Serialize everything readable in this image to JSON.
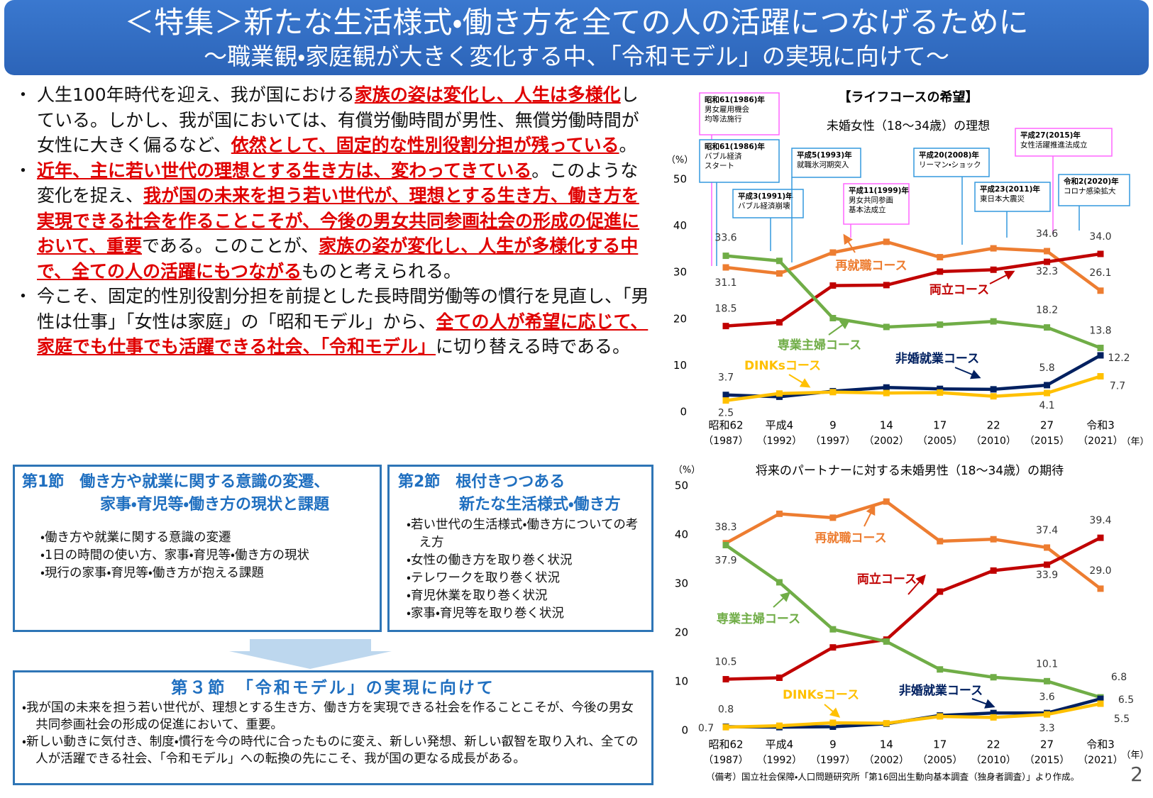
{
  "header": {
    "title": "＜特集＞新たな生活様式・働き方を全ての人の活躍につなげるために",
    "subtitle": "～職業観・家庭観が大きく変化する中、「令和モデル」の実現に向けて～"
  },
  "bullets": [
    {
      "marker": "・",
      "runs": [
        {
          "text": "人生100年時代を迎え、我が国における",
          "emphasis": false
        },
        {
          "text": "家族の姿は変化し、人生は多様化",
          "emphasis": true
        },
        {
          "text": "している。しかし、我が国においては、有償労働時間が男性、無償労働時間が女性に大きく偏るなど、",
          "emphasis": false
        },
        {
          "text": "依然として、固定的な性別役割分担が残っている",
          "emphasis": true
        },
        {
          "text": "。",
          "emphasis": false
        }
      ]
    },
    {
      "marker": "・",
      "runs": [
        {
          "text": "近年、主に若い世代の理想とする生き方は、変わってきている",
          "emphasis": true
        },
        {
          "text": "。このような変化を捉え、",
          "emphasis": false
        },
        {
          "text": "我が国の未来を担う若い世代が、理想とする生き方、働き方を実現できる社会を作ることこそが、今後の男女共同参画社会の形成の促進において、重要",
          "emphasis": true
        },
        {
          "text": "である。このことが、",
          "emphasis": false
        },
        {
          "text": "家族の姿が変化し、人生が多様化する中で、全ての人の活躍にもつながる",
          "emphasis": true
        },
        {
          "text": "ものと考えられる。",
          "emphasis": false
        }
      ]
    },
    {
      "marker": "・",
      "runs": [
        {
          "text": "今こそ、固定的性別役割分担を前提とした長時間労働等の慣行を見直し、「男性は仕事」「女性は家庭」の「昭和モデル」から、",
          "emphasis": false
        },
        {
          "text": "全ての人が希望に応じて、家庭でも仕事でも活躍できる社会、「令和モデル」",
          "emphasis": true
        },
        {
          "text": "に切り替える時である。",
          "emphasis": false
        }
      ]
    }
  ],
  "sections": [
    {
      "title": [
        "第1節　働き方や就業に関する意識の変遷、",
        "家事・育児等・働き方の現状と課題"
      ],
      "items": [
        "・働き方や就業に関する意識の変遷",
        "・1日の時間の使い方、家事・育児等・働き方の現状",
        "・現行の家事・育児等・働き方が抱える課題"
      ]
    },
    {
      "title": [
        "第2節　根付きつつある",
        "新たな生活様式・働き方"
      ],
      "items": [
        "・若い世代の生活様式・働き方についての考え方",
        "・女性の働き方を取り巻く状況",
        "・テレワークを取り巻く状況",
        "・育児休業を取り巻く状況",
        "・家事・育児等を取り巻く状況"
      ]
    },
    {
      "title": [
        "第３節　「令和モデル」の実現に向けて"
      ],
      "items": [
        "・我が国の未来を担う若い世代が、理想とする生き方、働き方を実現できる社会を作ることこそが、今後の男女共同参画社会の形成の促進において、重要。",
        "・新しい動きに気付き、制度・慣行を今の時代に合ったものに変え、新しい発想、新しい叡智を取り入れ、全ての人が活躍できる社会、「令和モデル」への転換の先にこそ、我が国の更なる成長がある。"
      ]
    }
  ],
  "chart_data": [
    {
      "type": "line",
      "heading": "【ライフコースの希望】",
      "title": "未婚女性（18～34歳）の理想",
      "y_unit": "（%）",
      "x_unit": "（年）",
      "categories": [
        "昭和62",
        "平成4",
        "9",
        "14",
        "17",
        "22",
        "27",
        "令和3"
      ],
      "category_years": [
        "（1987）",
        "（1992）",
        "（1997）",
        "（2002）",
        "（2005）",
        "（2010）",
        "（2015）",
        "（2021）"
      ],
      "ylim": [
        0,
        50
      ],
      "yticks": [
        0,
        10,
        20,
        30,
        40,
        50
      ],
      "grid": false,
      "series": [
        {
          "name": "再就職コース",
          "color": "#ed7d31",
          "values": [
            31.1,
            29.8,
            34.3,
            36.6,
            33.3,
            35.2,
            34.6,
            26.1
          ],
          "value_labels": [
            "31.1",
            null,
            null,
            null,
            null,
            null,
            "34.6",
            "26.1"
          ]
        },
        {
          "name": "両立コース",
          "color": "#c00000",
          "values": [
            18.5,
            19.3,
            27.2,
            27.3,
            30.2,
            30.6,
            32.3,
            34.0
          ],
          "value_labels": [
            "18.5",
            null,
            null,
            null,
            null,
            null,
            "32.3",
            "34.0"
          ]
        },
        {
          "name": "専業主婦コース",
          "color": "#70ad47",
          "values": [
            33.6,
            32.5,
            20.2,
            18.3,
            18.8,
            19.5,
            18.2,
            13.8
          ],
          "value_labels": [
            "33.6",
            null,
            null,
            null,
            null,
            null,
            "18.2",
            "13.8"
          ]
        },
        {
          "name": "非婚就業コース",
          "color": "#002060",
          "values": [
            3.7,
            3.3,
            4.5,
            5.3,
            5.0,
            4.9,
            5.8,
            12.2
          ],
          "value_labels": [
            "3.7",
            null,
            null,
            null,
            null,
            null,
            "5.8",
            "12.2"
          ]
        },
        {
          "name": "DINKsコース",
          "color": "#ffc000",
          "values": [
            2.5,
            4.0,
            4.3,
            4.1,
            4.2,
            3.4,
            4.1,
            7.7
          ],
          "value_labels": [
            "2.5",
            null,
            null,
            null,
            null,
            null,
            "4.1",
            "7.7"
          ]
        }
      ],
      "annotations": [
        {
          "lines": [
            "昭和61(1986)年",
            "男女雇用機会",
            "均等法施行"
          ],
          "color": "#ff66ff"
        },
        {
          "lines": [
            "昭和61(1986)年",
            "バブル経済",
            "スタート"
          ],
          "color": "#3399dd"
        },
        {
          "lines": [
            "平成3(1991)年",
            "バブル経済崩壊"
          ],
          "color": "#3399dd"
        },
        {
          "lines": [
            "平成5(1993)年",
            "就職氷河期突入"
          ],
          "color": "#3399dd"
        },
        {
          "lines": [
            "平成11(1999)年",
            "男女共同参画",
            "基本法成立"
          ],
          "color": "#ff66ff"
        },
        {
          "lines": [
            "平成20(2008)年",
            "リーマン・ショック"
          ],
          "color": "#3399dd"
        },
        {
          "lines": [
            "平成23(2011)年",
            "東日本大震災"
          ],
          "color": "#3399dd"
        },
        {
          "lines": [
            "平成27(2015)年",
            "女性活躍推進法成立"
          ],
          "color": "#ff66ff"
        },
        {
          "lines": [
            "令和2(2020)年",
            "コロナ感染拡大"
          ],
          "color": "#3399dd"
        }
      ]
    },
    {
      "type": "line",
      "title": "将来のパートナーに対する未婚男性（18～34歳）の期待",
      "y_unit": "（%）",
      "x_unit": "（年）",
      "categories": [
        "昭和62",
        "平成4",
        "9",
        "14",
        "17",
        "22",
        "27",
        "令和3"
      ],
      "category_years": [
        "（1987）",
        "（1992）",
        "（1997）",
        "（2002）",
        "（2005）",
        "（2010）",
        "（2015）",
        "（2021）"
      ],
      "ylim": [
        0,
        50
      ],
      "yticks": [
        0,
        10,
        20,
        30,
        40,
        50
      ],
      "grid": false,
      "series": [
        {
          "name": "再就職コース",
          "color": "#ed7d31",
          "values": [
            38.3,
            44.3,
            43.5,
            46.8,
            38.7,
            39.1,
            37.4,
            29.0
          ],
          "value_labels": [
            "38.3",
            null,
            null,
            null,
            null,
            null,
            "37.4",
            "29.0"
          ]
        },
        {
          "name": "両立コース",
          "color": "#c00000",
          "values": [
            10.5,
            10.8,
            17.0,
            18.6,
            28.4,
            32.7,
            33.9,
            39.4
          ],
          "value_labels": [
            "10.5",
            null,
            null,
            null,
            null,
            null,
            "33.9",
            "39.4"
          ]
        },
        {
          "name": "専業主婦コース",
          "color": "#70ad47",
          "values": [
            37.9,
            30.3,
            20.7,
            18.2,
            12.5,
            10.9,
            10.1,
            6.8
          ],
          "value_labels": [
            "37.9",
            null,
            null,
            null,
            null,
            null,
            "10.1",
            "6.8"
          ]
        },
        {
          "name": "非婚就業コース",
          "color": "#002060",
          "values": [
            0.8,
            0.7,
            0.8,
            1.4,
            3.1,
            3.6,
            3.6,
            6.5
          ],
          "value_labels": [
            "0.8",
            null,
            null,
            null,
            null,
            null,
            "3.6",
            "6.5"
          ]
        },
        {
          "name": "DINKsコース",
          "color": "#ffc000",
          "values": [
            0.7,
            1.0,
            1.6,
            1.5,
            2.9,
            2.7,
            3.3,
            5.5
          ],
          "value_labels": [
            "0.7",
            null,
            null,
            null,
            null,
            null,
            "3.3",
            "5.5"
          ]
        }
      ]
    }
  ],
  "footnote": "（備考）国立社会保障・人口問題研究所「第16回出生動向基本調査（独身者調査）」より作成。",
  "page_number": "2"
}
